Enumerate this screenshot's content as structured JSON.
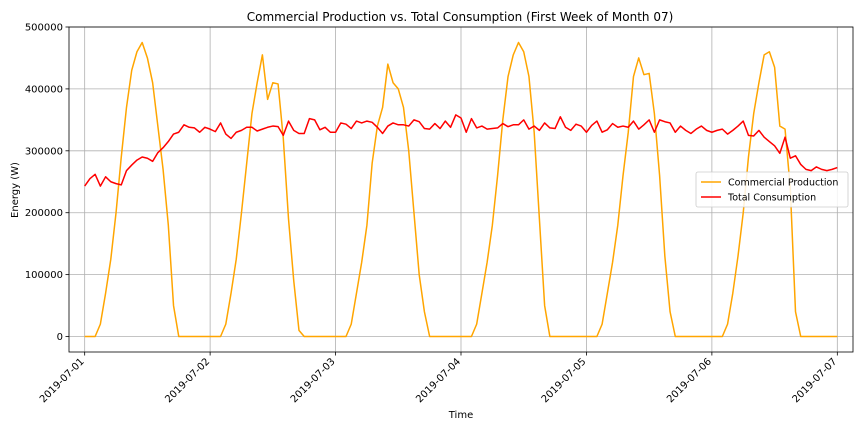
{
  "chart_data": {
    "type": "line",
    "title": "Commercial Production vs. Total Consumption (First Week of Month 07)",
    "xlabel": "Time",
    "ylabel": "Energy (W)",
    "xlim": [
      "2019-06-30T21:00",
      "2019-07-07T03:00"
    ],
    "ylim": [
      -25000,
      500000
    ],
    "x_ticks": [
      "2019-07-01",
      "2019-07-02",
      "2019-07-03",
      "2019-07-04",
      "2019-07-05",
      "2019-07-06",
      "2019-07-07"
    ],
    "y_ticks": [
      0,
      100000,
      200000,
      300000,
      400000,
      500000
    ],
    "grid": true,
    "legend": {
      "position": "center-right"
    },
    "x": [
      "2019-07-01T00:00",
      "2019-07-01T01:00",
      "2019-07-01T02:00",
      "2019-07-01T03:00",
      "2019-07-01T04:00",
      "2019-07-01T05:00",
      "2019-07-01T06:00",
      "2019-07-01T07:00",
      "2019-07-01T08:00",
      "2019-07-01T09:00",
      "2019-07-01T10:00",
      "2019-07-01T11:00",
      "2019-07-01T12:00",
      "2019-07-01T13:00",
      "2019-07-01T14:00",
      "2019-07-01T15:00",
      "2019-07-01T16:00",
      "2019-07-01T17:00",
      "2019-07-01T18:00",
      "2019-07-01T19:00",
      "2019-07-01T20:00",
      "2019-07-01T21:00",
      "2019-07-01T22:00",
      "2019-07-01T23:00",
      "2019-07-02T00:00",
      "2019-07-02T01:00",
      "2019-07-02T02:00",
      "2019-07-02T03:00",
      "2019-07-02T04:00",
      "2019-07-02T05:00",
      "2019-07-02T06:00",
      "2019-07-02T07:00",
      "2019-07-02T08:00",
      "2019-07-02T09:00",
      "2019-07-02T10:00",
      "2019-07-02T11:00",
      "2019-07-02T12:00",
      "2019-07-02T13:00",
      "2019-07-02T14:00",
      "2019-07-02T15:00",
      "2019-07-02T16:00",
      "2019-07-02T17:00",
      "2019-07-02T18:00",
      "2019-07-02T19:00",
      "2019-07-02T20:00",
      "2019-07-02T21:00",
      "2019-07-02T22:00",
      "2019-07-02T23:00",
      "2019-07-03T00:00",
      "2019-07-03T01:00",
      "2019-07-03T02:00",
      "2019-07-03T03:00",
      "2019-07-03T04:00",
      "2019-07-03T05:00",
      "2019-07-03T06:00",
      "2019-07-03T07:00",
      "2019-07-03T08:00",
      "2019-07-03T09:00",
      "2019-07-03T10:00",
      "2019-07-03T11:00",
      "2019-07-03T12:00",
      "2019-07-03T13:00",
      "2019-07-03T14:00",
      "2019-07-03T15:00",
      "2019-07-03T16:00",
      "2019-07-03T17:00",
      "2019-07-03T18:00",
      "2019-07-03T19:00",
      "2019-07-03T20:00",
      "2019-07-03T21:00",
      "2019-07-03T22:00",
      "2019-07-03T23:00",
      "2019-07-04T00:00",
      "2019-07-04T01:00",
      "2019-07-04T02:00",
      "2019-07-04T03:00",
      "2019-07-04T04:00",
      "2019-07-04T05:00",
      "2019-07-04T06:00",
      "2019-07-04T07:00",
      "2019-07-04T08:00",
      "2019-07-04T09:00",
      "2019-07-04T10:00",
      "2019-07-04T11:00",
      "2019-07-04T12:00",
      "2019-07-04T13:00",
      "2019-07-04T14:00",
      "2019-07-04T15:00",
      "2019-07-04T16:00",
      "2019-07-04T17:00",
      "2019-07-04T18:00",
      "2019-07-04T19:00",
      "2019-07-04T20:00",
      "2019-07-04T21:00",
      "2019-07-04T22:00",
      "2019-07-04T23:00",
      "2019-07-05T00:00",
      "2019-07-05T01:00",
      "2019-07-05T02:00",
      "2019-07-05T03:00",
      "2019-07-05T04:00",
      "2019-07-05T05:00",
      "2019-07-05T06:00",
      "2019-07-05T07:00",
      "2019-07-05T08:00",
      "2019-07-05T09:00",
      "2019-07-05T10:00",
      "2019-07-05T11:00",
      "2019-07-05T12:00",
      "2019-07-05T13:00",
      "2019-07-05T14:00",
      "2019-07-05T15:00",
      "2019-07-05T16:00",
      "2019-07-05T17:00",
      "2019-07-05T18:00",
      "2019-07-05T19:00",
      "2019-07-05T20:00",
      "2019-07-05T21:00",
      "2019-07-05T22:00",
      "2019-07-05T23:00",
      "2019-07-06T00:00",
      "2019-07-06T01:00",
      "2019-07-06T02:00",
      "2019-07-06T03:00",
      "2019-07-06T04:00",
      "2019-07-06T05:00",
      "2019-07-06T06:00",
      "2019-07-06T07:00",
      "2019-07-06T08:00",
      "2019-07-06T09:00",
      "2019-07-06T10:00",
      "2019-07-06T11:00",
      "2019-07-06T12:00",
      "2019-07-06T13:00",
      "2019-07-06T14:00",
      "2019-07-06T15:00",
      "2019-07-06T16:00",
      "2019-07-06T17:00",
      "2019-07-06T18:00",
      "2019-07-06T19:00",
      "2019-07-06T20:00",
      "2019-07-06T21:00",
      "2019-07-06T22:00",
      "2019-07-06T23:00",
      "2019-07-07T00:00"
    ],
    "series": [
      {
        "name": "Commercial Production",
        "color": "#FFA500",
        "values": [
          0,
          0,
          0,
          20000,
          70000,
          125000,
          200000,
          290000,
          370000,
          430000,
          460000,
          475000,
          450000,
          410000,
          340000,
          270000,
          180000,
          50000,
          0,
          0,
          0,
          0,
          0,
          0,
          0,
          0,
          0,
          20000,
          70000,
          125000,
          200000,
          280000,
          360000,
          410000,
          455000,
          383000,
          410000,
          408000,
          320000,
          190000,
          90000,
          10000,
          0,
          0,
          0,
          0,
          0,
          0,
          0,
          0,
          0,
          20000,
          70000,
          120000,
          180000,
          280000,
          340000,
          370000,
          440000,
          410000,
          400000,
          370000,
          300000,
          200000,
          100000,
          40000,
          0,
          0,
          0,
          0,
          0,
          0,
          0,
          0,
          0,
          20000,
          70000,
          120000,
          180000,
          260000,
          350000,
          420000,
          455000,
          475000,
          460000,
          420000,
          330000,
          190000,
          50000,
          0,
          0,
          0,
          0,
          0,
          0,
          0,
          0,
          0,
          0,
          20000,
          70000,
          120000,
          180000,
          260000,
          330000,
          420000,
          450000,
          423000,
          425000,
          360000,
          260000,
          130000,
          40000,
          0,
          0,
          0,
          0,
          0,
          0,
          0,
          0,
          0,
          0,
          20000,
          70000,
          130000,
          200000,
          290000,
          360000,
          410000,
          455000,
          460000,
          435000,
          340000,
          335000,
          240000,
          40000,
          0,
          0,
          0,
          0,
          0,
          0,
          0,
          0
        ]
      },
      {
        "name": "Total Consumption",
        "color": "#FF0000",
        "values": [
          243000,
          255000,
          262000,
          243000,
          258000,
          250000,
          247000,
          245000,
          268000,
          277000,
          285000,
          290000,
          288000,
          283000,
          297000,
          305000,
          315000,
          327000,
          330000,
          342000,
          338000,
          337000,
          330000,
          338000,
          335000,
          331000,
          345000,
          327000,
          320000,
          330000,
          333000,
          338000,
          338000,
          332000,
          335000,
          338000,
          340000,
          339000,
          325000,
          348000,
          333000,
          328000,
          328000,
          352000,
          350000,
          334000,
          338000,
          330000,
          330000,
          345000,
          343000,
          336000,
          348000,
          345000,
          348000,
          346000,
          338000,
          328000,
          340000,
          345000,
          342000,
          342000,
          340000,
          350000,
          347000,
          336000,
          335000,
          344000,
          336000,
          348000,
          338000,
          358000,
          353000,
          330000,
          352000,
          337000,
          340000,
          335000,
          336000,
          337000,
          344000,
          339000,
          342000,
          342000,
          350000,
          335000,
          340000,
          333000,
          345000,
          337000,
          336000,
          355000,
          338000,
          333000,
          343000,
          340000,
          330000,
          341000,
          348000,
          330000,
          334000,
          344000,
          338000,
          340000,
          338000,
          348000,
          335000,
          342000,
          350000,
          330000,
          350000,
          347000,
          345000,
          330000,
          340000,
          333000,
          328000,
          335000,
          340000,
          333000,
          330000,
          333000,
          335000,
          327000,
          333000,
          340000,
          348000,
          325000,
          324000,
          333000,
          322000,
          315000,
          308000,
          296000,
          322000,
          288000,
          292000,
          278000,
          270000,
          268000,
          274000,
          270000,
          268000,
          270000,
          273000
        ]
      }
    ]
  }
}
